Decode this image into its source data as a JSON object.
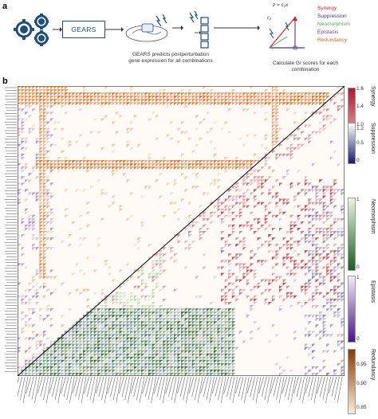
{
  "panel_a": {
    "letter": "a",
    "method_label": "GEARS",
    "predict_caption_line1": "GEARS predicts postperturbation",
    "predict_caption_line2": "gene expression for all combinations",
    "score_caption_line1": "Calculate GI scores for each",
    "score_caption_line2": "combination",
    "formula_z": "z = c₁x",
    "formula_c2": "c₂",
    "legend": [
      {
        "label": "Synergy",
        "color": "#d62728"
      },
      {
        "label": "Suppression",
        "color": "#3b3b8f"
      },
      {
        "label": "Neomorphism",
        "color": "#4caf50"
      },
      {
        "label": "Epistasis",
        "color": "#7b3f9e"
      },
      {
        "label": "Redundancy",
        "color": "#d2691e"
      }
    ],
    "colors": {
      "icon_blue": "#1f4e79",
      "arrow": "#333333"
    }
  },
  "panel_b": {
    "letter": "b",
    "colorbars": [
      {
        "title": "Synergy",
        "ticks": [
          "1.6",
          "1.4",
          "1.2"
        ],
        "colors": [
          "#fbe3dc",
          "#b2182b"
        ]
      },
      {
        "title": "Suppression",
        "ticks": [
          "1.0",
          "0.5",
          "0"
        ],
        "colors": [
          "#ffffff",
          "#1a1a6e"
        ]
      },
      {
        "title": "Neomorphism",
        "ticks": [
          "1",
          "0"
        ],
        "colors": [
          "#e8f5e0",
          "#1b5e20"
        ]
      },
      {
        "title": "Epistasis",
        "ticks": [
          "1",
          "0"
        ],
        "colors": [
          "#f2ecf7",
          "#4a1486"
        ]
      },
      {
        "title": "Redundancy",
        "ticks": [
          "0.95",
          "0.90",
          "0.85"
        ],
        "colors": [
          "#fdebd7",
          "#8c3a00"
        ]
      }
    ]
  }
}
